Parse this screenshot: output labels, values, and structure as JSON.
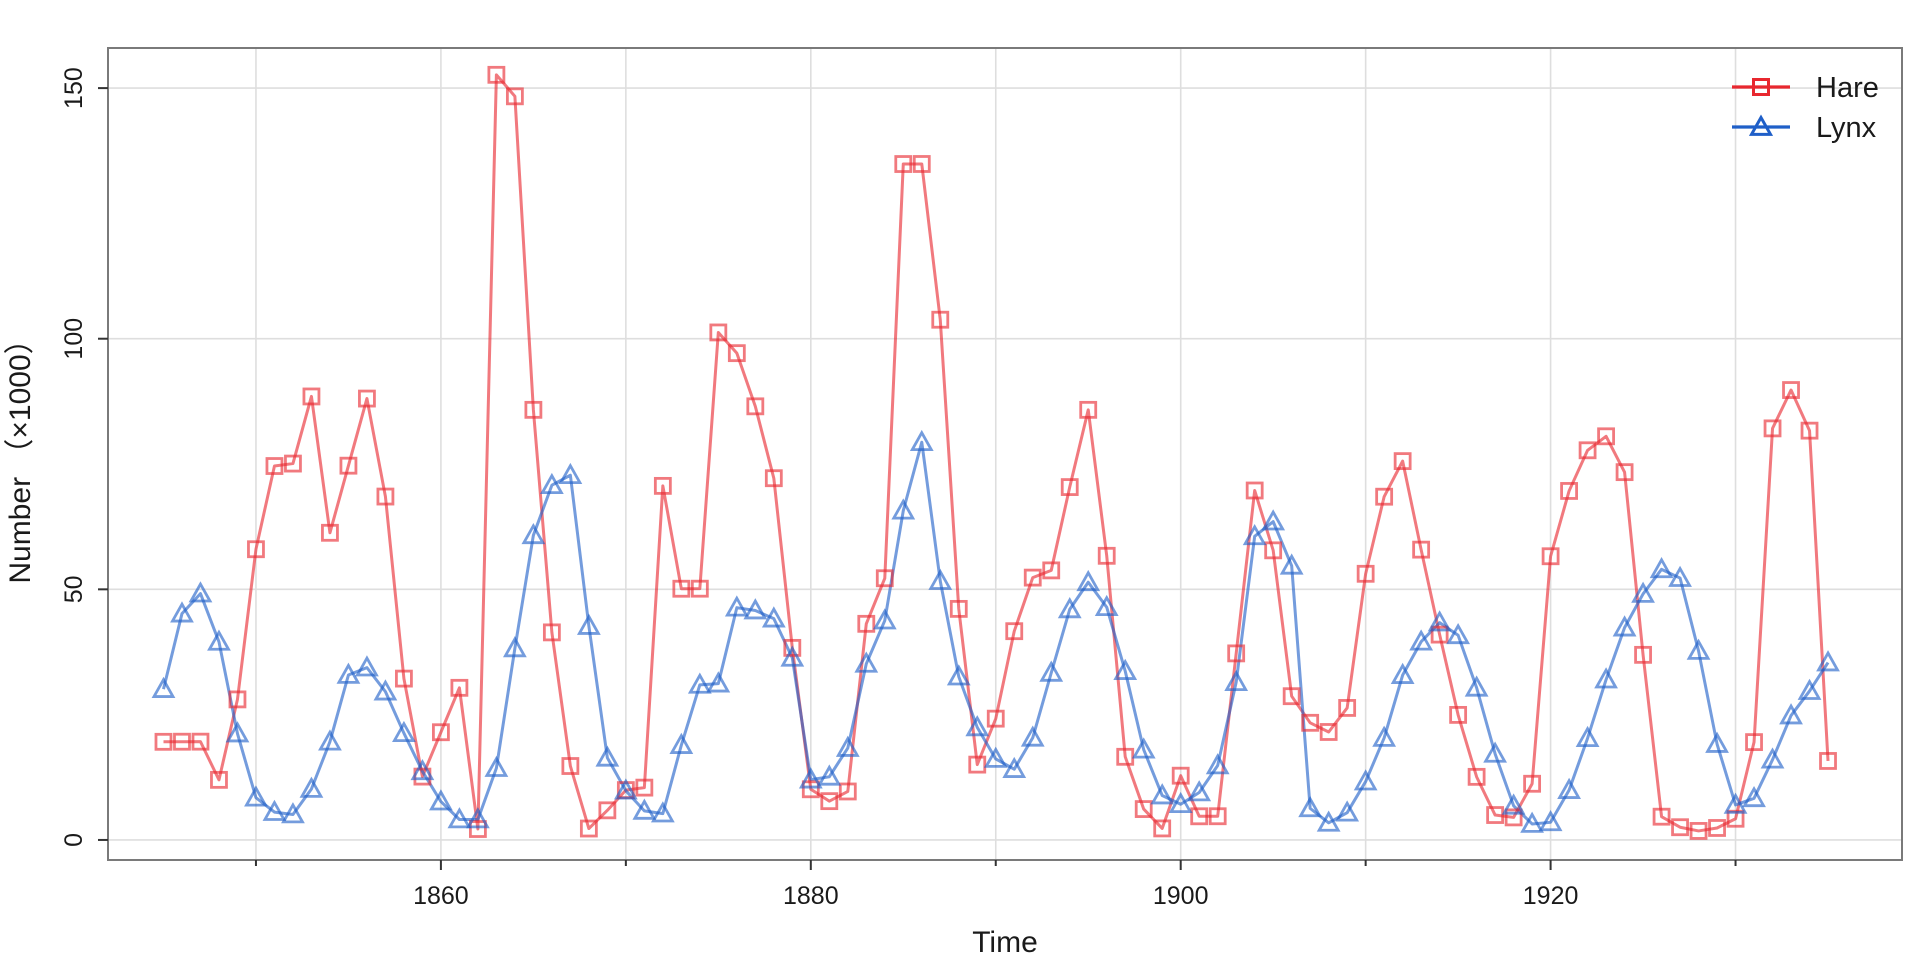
{
  "chart_data": {
    "type": "line",
    "xlabel": "Time",
    "ylabel": "Number （×1000）",
    "xlim": [
      1842,
      1939
    ],
    "ylim": [
      -4,
      158
    ],
    "x_ticks": [
      1860,
      1880,
      1900,
      1920
    ],
    "x_minor_ticks": [
      1850,
      1870,
      1890,
      1910,
      1930
    ],
    "y_ticks": [
      0,
      50,
      100,
      150
    ],
    "grid": true,
    "legend_position": "top-right",
    "x": [
      1845,
      1846,
      1847,
      1848,
      1849,
      1850,
      1851,
      1852,
      1853,
      1854,
      1855,
      1856,
      1857,
      1858,
      1859,
      1860,
      1861,
      1862,
      1863,
      1864,
      1865,
      1866,
      1867,
      1868,
      1869,
      1870,
      1871,
      1872,
      1873,
      1874,
      1875,
      1876,
      1877,
      1878,
      1879,
      1880,
      1881,
      1882,
      1883,
      1884,
      1885,
      1886,
      1887,
      1888,
      1889,
      1890,
      1891,
      1892,
      1893,
      1894,
      1895,
      1896,
      1897,
      1898,
      1899,
      1900,
      1901,
      1902,
      1903,
      1904,
      1905,
      1906,
      1907,
      1908,
      1909,
      1910,
      1911,
      1912,
      1913,
      1914,
      1915,
      1916,
      1917,
      1918,
      1919,
      1920,
      1921,
      1922,
      1923,
      1924,
      1925,
      1926,
      1927,
      1928,
      1929,
      1930,
      1931,
      1932,
      1933,
      1934,
      1935
    ],
    "series": [
      {
        "name": "Hare",
        "color": "#E8272F",
        "marker": "square",
        "values": [
          19.58,
          19.6,
          19.61,
          11.99,
          28.04,
          58,
          74.6,
          75.09,
          88.48,
          61.28,
          74.67,
          88.06,
          68.51,
          32.19,
          12.64,
          21.49,
          30.35,
          2.18,
          152.65,
          148.36,
          85.81,
          41.41,
          14.75,
          2.28,
          5.91,
          9.95,
          10.44,
          70.64,
          50.12,
          50.13,
          101.25,
          97.12,
          86.51,
          72.17,
          38.32,
          10.11,
          7.74,
          9.67,
          43.12,
          52.21,
          134.85,
          134.86,
          103.79,
          46.1,
          15.03,
          24.2,
          41.65,
          52.34,
          53.78,
          70.4,
          85.81,
          56.69,
          16.59,
          6.16,
          2.3,
          12.82,
          4.72,
          4.73,
          37.22,
          69.72,
          57.78,
          28.68,
          23.37,
          21.54,
          26.34,
          53.1,
          68.48,
          75.58,
          57.92,
          40.97,
          24.95,
          12.59,
          4.97,
          4.5,
          11.21,
          56.6,
          69.63,
          77.74,
          80.53,
          73.38,
          36.93,
          4.64,
          2.54,
          1.8,
          2.39,
          4.23,
          19.52,
          82.11,
          89.76,
          81.66,
          15.76
        ]
      },
      {
        "name": "Lynx",
        "color": "#1F5FC8",
        "marker": "triangle",
        "values": [
          30.09,
          45.15,
          49.15,
          39.52,
          21.23,
          8.42,
          5.56,
          5.08,
          10.17,
          19.6,
          32.91,
          34.38,
          29.59,
          21.3,
          13.69,
          7.65,
          4.08,
          4.09,
          14.33,
          38.22,
          60.78,
          70.77,
          72.77,
          42.68,
          16.39,
          9.83,
          5.8,
          5.26,
          18.91,
          30.95,
          31.18,
          46.34,
          45.77,
          44.15,
          36.33,
          12.03,
          12.6,
          18.34,
          35.14,
          43.77,
          65.69,
          79.35,
          51.65,
          32.59,
          22.45,
          16.16,
          14.12,
          20.38,
          33.33,
          46,
          51.41,
          46.43,
          33.68,
          18.01,
          8.86,
          7.13,
          9.47,
          14.86,
          31.47,
          60.57,
          63.51,
          54.7,
          6.3,
          3.41,
          5.44,
          11.65,
          20.35,
          32.88,
          39.55,
          43.36,
          40.83,
          30.36,
          17.18,
          6.82,
          3.19,
          3.52,
          9.94,
          20.3,
          31.99,
          42.36,
          49.08,
          53.99,
          52.25,
          37.7,
          19.14,
          6.98,
          8.31,
          16.01,
          24.82,
          29.7,
          35.4
        ]
      }
    ]
  }
}
